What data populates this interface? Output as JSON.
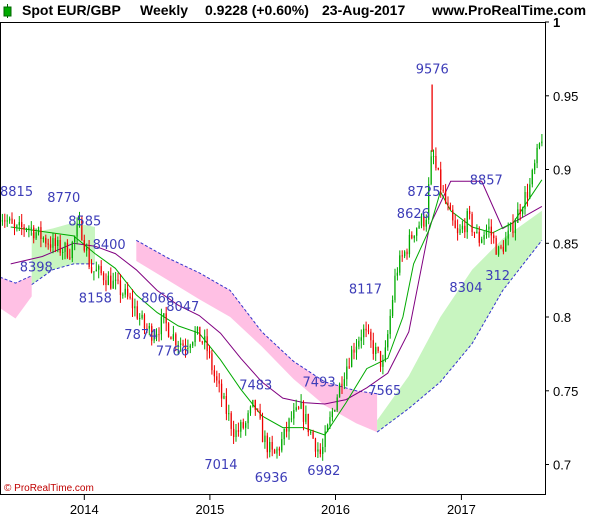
{
  "header": {
    "instrument": "Spot EUR/GBP",
    "period": "Weekly",
    "last_change": "0.9228 (+0.60%)",
    "date": "23-Aug-2017",
    "site": "www.ProRealTime.com"
  },
  "watermark": "© ProRealTime.com",
  "colors": {
    "up": "#00aa00",
    "down": "#ee0000",
    "ma_fast": "#00aa00",
    "ma_slow": "#800080",
    "cloud_bull": "#c8f5c0",
    "cloud_bear": "#ffc0e4",
    "cloud_edge": "#3333cc",
    "annotation": "#3d3db8"
  },
  "chart_data": {
    "type": "candlestick",
    "y_axis": {
      "min": 0.68,
      "max": 1.0,
      "ticks": [
        "1",
        "0.95",
        "0.9",
        "0.85",
        "0.8",
        "0.75",
        "0.7"
      ],
      "tick_values": [
        1.0,
        0.95,
        0.9,
        0.85,
        0.8,
        0.75,
        0.7
      ],
      "position": "right"
    },
    "x_axis": {
      "ticks": [
        "2014",
        "2015",
        "2016",
        "2017"
      ],
      "tick_dates": [
        "2014-01-01",
        "2015-01-01",
        "2016-01-01",
        "2017-01-01"
      ],
      "start": "2013-05-01",
      "end": "2017-09-01"
    },
    "price_path": [
      [
        "2013-05-01",
        0.871
      ],
      [
        "2013-06-15",
        0.858
      ],
      [
        "2013-07-20",
        0.862
      ],
      [
        "2013-09-01",
        0.854
      ],
      [
        "2013-10-15",
        0.847
      ],
      [
        "2013-11-20",
        0.845
      ],
      [
        "2013-12-20",
        0.863
      ],
      [
        "2014-01-20",
        0.832
      ],
      [
        "2014-03-01",
        0.828
      ],
      [
        "2014-04-01",
        0.821
      ],
      [
        "2014-04-25",
        0.816
      ],
      [
        "2014-05-25",
        0.807
      ],
      [
        "2014-06-25",
        0.793
      ],
      [
        "2014-07-20",
        0.789
      ],
      [
        "2014-08-20",
        0.797
      ],
      [
        "2014-09-20",
        0.786
      ],
      [
        "2014-10-20",
        0.781
      ],
      [
        "2014-11-20",
        0.789
      ],
      [
        "2014-12-20",
        0.781
      ],
      [
        "2015-01-15",
        0.759
      ],
      [
        "2015-02-15",
        0.738
      ],
      [
        "2015-03-15",
        0.721
      ],
      [
        "2015-04-15",
        0.727
      ],
      [
        "2015-05-10",
        0.741
      ],
      [
        "2015-06-05",
        0.718
      ],
      [
        "2015-07-05",
        0.705
      ],
      [
        "2015-08-01",
        0.717
      ],
      [
        "2015-08-25",
        0.731
      ],
      [
        "2015-09-25",
        0.737
      ],
      [
        "2015-10-20",
        0.722
      ],
      [
        "2015-11-20",
        0.706
      ],
      [
        "2015-12-20",
        0.733
      ],
      [
        "2016-01-20",
        0.759
      ],
      [
        "2016-02-20",
        0.778
      ],
      [
        "2016-03-20",
        0.791
      ],
      [
        "2016-04-20",
        0.779
      ],
      [
        "2016-05-20",
        0.766
      ],
      [
        "2016-06-25",
        0.831
      ],
      [
        "2016-07-25",
        0.846
      ],
      [
        "2016-08-20",
        0.861
      ],
      [
        "2016-09-20",
        0.867
      ],
      [
        "2016-10-08",
        0.912
      ],
      [
        "2016-10-20",
        0.899
      ],
      [
        "2016-11-20",
        0.874
      ],
      [
        "2016-12-20",
        0.854
      ],
      [
        "2017-01-20",
        0.867
      ],
      [
        "2017-02-20",
        0.852
      ],
      [
        "2017-03-20",
        0.861
      ],
      [
        "2017-04-20",
        0.843
      ],
      [
        "2017-05-20",
        0.856
      ],
      [
        "2017-06-20",
        0.874
      ],
      [
        "2017-07-20",
        0.889
      ],
      [
        "2017-08-23",
        0.9228
      ]
    ],
    "wick_spike": {
      "date": "2016-10-08",
      "high": 0.9576
    },
    "ma_fast_path": [
      [
        "2013-06-01",
        0.861
      ],
      [
        "2013-09-01",
        0.858
      ],
      [
        "2013-12-01",
        0.855
      ],
      [
        "2014-02-01",
        0.843
      ],
      [
        "2014-04-01",
        0.833
      ],
      [
        "2014-06-01",
        0.815
      ],
      [
        "2014-08-01",
        0.803
      ],
      [
        "2014-10-01",
        0.794
      ],
      [
        "2014-12-01",
        0.789
      ],
      [
        "2015-02-01",
        0.771
      ],
      [
        "2015-04-01",
        0.751
      ],
      [
        "2015-06-01",
        0.733
      ],
      [
        "2015-08-01",
        0.725
      ],
      [
        "2015-10-01",
        0.725
      ],
      [
        "2015-12-01",
        0.72
      ],
      [
        "2016-02-01",
        0.742
      ],
      [
        "2016-04-01",
        0.765
      ],
      [
        "2016-06-01",
        0.772
      ],
      [
        "2016-07-15",
        0.8
      ],
      [
        "2016-08-15",
        0.836
      ],
      [
        "2016-10-01",
        0.86
      ],
      [
        "2016-11-01",
        0.885
      ],
      [
        "2016-12-01",
        0.872
      ],
      [
        "2017-02-01",
        0.861
      ],
      [
        "2017-04-01",
        0.857
      ],
      [
        "2017-06-01",
        0.864
      ],
      [
        "2017-08-23",
        0.893
      ]
    ],
    "ma_slow_path": [
      [
        "2013-06-01",
        0.836
      ],
      [
        "2013-09-01",
        0.841
      ],
      [
        "2013-12-01",
        0.85
      ],
      [
        "2014-02-01",
        0.848
      ],
      [
        "2014-04-01",
        0.843
      ],
      [
        "2014-06-01",
        0.832
      ],
      [
        "2014-08-01",
        0.818
      ],
      [
        "2014-10-01",
        0.808
      ],
      [
        "2014-12-01",
        0.801
      ],
      [
        "2015-02-01",
        0.789
      ],
      [
        "2015-04-01",
        0.772
      ],
      [
        "2015-06-01",
        0.756
      ],
      [
        "2015-08-01",
        0.745
      ],
      [
        "2015-10-01",
        0.742
      ],
      [
        "2015-12-01",
        0.741
      ],
      [
        "2016-02-01",
        0.744
      ],
      [
        "2016-04-01",
        0.752
      ],
      [
        "2016-06-01",
        0.762
      ],
      [
        "2016-08-01",
        0.79
      ],
      [
        "2016-10-01",
        0.862
      ],
      [
        "2016-12-01",
        0.892
      ],
      [
        "2017-03-01",
        0.892
      ],
      [
        "2017-05-01",
        0.86
      ],
      [
        "2017-08-23",
        0.875
      ]
    ],
    "cloud": [
      {
        "kind": "bear",
        "upper": [
          [
            "2013-05-01",
            0.827
          ],
          [
            "2013-06-15",
            0.823
          ],
          [
            "2013-08-01",
            0.828
          ]
        ],
        "lower": [
          [
            "2013-05-01",
            0.806
          ],
          [
            "2013-06-15",
            0.799
          ],
          [
            "2013-08-01",
            0.814
          ]
        ]
      },
      {
        "kind": "bull",
        "upper": [
          [
            "2013-08-01",
            0.857
          ],
          [
            "2013-10-01",
            0.86
          ],
          [
            "2013-12-01",
            0.864
          ],
          [
            "2014-02-01",
            0.861
          ]
        ],
        "lower": [
          [
            "2013-08-01",
            0.822
          ],
          [
            "2013-10-01",
            0.832
          ],
          [
            "2013-12-01",
            0.836
          ],
          [
            "2014-02-01",
            0.836
          ]
        ]
      },
      {
        "kind": "bear",
        "upper": [
          [
            "2014-06-01",
            0.852
          ],
          [
            "2014-09-01",
            0.84
          ],
          [
            "2014-12-01",
            0.83
          ],
          [
            "2015-03-01",
            0.818
          ],
          [
            "2015-06-01",
            0.79
          ],
          [
            "2015-09-01",
            0.77
          ],
          [
            "2015-12-01",
            0.756
          ],
          [
            "2016-03-01",
            0.75
          ],
          [
            "2016-05-01",
            0.748
          ]
        ],
        "lower": [
          [
            "2014-06-01",
            0.838
          ],
          [
            "2014-09-01",
            0.825
          ],
          [
            "2014-12-01",
            0.812
          ],
          [
            "2015-03-01",
            0.8
          ],
          [
            "2015-06-01",
            0.78
          ],
          [
            "2015-09-01",
            0.758
          ],
          [
            "2015-12-01",
            0.74
          ],
          [
            "2016-03-01",
            0.728
          ],
          [
            "2016-05-01",
            0.722
          ]
        ]
      },
      {
        "kind": "bull",
        "upper": [
          [
            "2016-05-01",
            0.73
          ],
          [
            "2016-08-01",
            0.76
          ],
          [
            "2016-11-01",
            0.8
          ],
          [
            "2017-02-01",
            0.832
          ],
          [
            "2017-05-01",
            0.853
          ],
          [
            "2017-08-23",
            0.872
          ]
        ],
        "lower": [
          [
            "2016-05-01",
            0.722
          ],
          [
            "2016-08-01",
            0.738
          ],
          [
            "2016-11-01",
            0.756
          ],
          [
            "2017-02-01",
            0.782
          ],
          [
            "2017-05-01",
            0.818
          ],
          [
            "2017-08-23",
            0.852
          ]
        ]
      }
    ],
    "annotations": [
      {
        "label": "8815",
        "date": "2013-05-25",
        "price": 0.882
      },
      {
        "label": "8770",
        "date": "2013-10-20",
        "price": 0.878
      },
      {
        "label": "8585",
        "date": "2013-12-20",
        "price": 0.862
      },
      {
        "label": "8398",
        "date": "2013-08-01",
        "price": 0.831
      },
      {
        "label": "8400",
        "date": "2014-03-01",
        "price": 0.846
      },
      {
        "label": "8158",
        "date": "2014-01-20",
        "price": 0.81
      },
      {
        "label": "8066",
        "date": "2014-07-20",
        "price": 0.81
      },
      {
        "label": "8047",
        "date": "2014-10-01",
        "price": 0.804
      },
      {
        "label": "7874",
        "date": "2014-06-01",
        "price": 0.785
      },
      {
        "label": "7766",
        "date": "2014-09-01",
        "price": 0.774
      },
      {
        "label": "7483",
        "date": "2015-05-01",
        "price": 0.751
      },
      {
        "label": "7493",
        "date": "2015-11-01",
        "price": 0.753
      },
      {
        "label": "7565",
        "date": "2016-05-10",
        "price": 0.747
      },
      {
        "label": "7014",
        "date": "2015-01-20",
        "price": 0.697
      },
      {
        "label": "6936",
        "date": "2015-06-15",
        "price": 0.688
      },
      {
        "label": "6982",
        "date": "2015-11-15",
        "price": 0.693
      },
      {
        "label": "8117",
        "date": "2016-03-15",
        "price": 0.816
      },
      {
        "label": "8725",
        "date": "2016-09-01",
        "price": 0.882
      },
      {
        "label": "8626",
        "date": "2016-08-01",
        "price": 0.867
      },
      {
        "label": "9576",
        "date": "2016-09-25",
        "price": 0.965
      },
      {
        "label": "8857",
        "date": "2017-03-01",
        "price": 0.89
      },
      {
        "label": "8304",
        "date": "2017-01-01",
        "price": 0.817
      },
      {
        "label": "312",
        "date": "2017-04-15",
        "price": 0.825
      }
    ]
  }
}
